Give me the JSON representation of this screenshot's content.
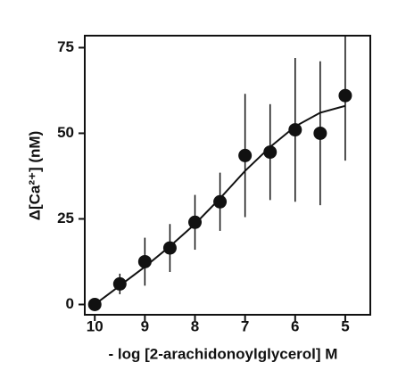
{
  "chart_data": {
    "type": "scatter",
    "xlabel": "- log [2-arachidonoylglycerol] M",
    "ylabel": "Δ[Ca²⁺] (nM)",
    "x": [
      10,
      9.5,
      9,
      8.5,
      8,
      7.5,
      7,
      6.5,
      6,
      5.5,
      5
    ],
    "values": [
      0,
      6,
      12.5,
      16.5,
      24,
      30,
      43.5,
      44.5,
      51,
      50,
      61
    ],
    "errors": [
      0,
      3,
      7,
      7,
      8,
      8.5,
      18,
      14,
      21,
      21,
      19
    ],
    "fit": {
      "x": [
        10,
        9.5,
        9,
        8.5,
        8,
        7.5,
        7,
        6.5,
        6,
        5.5,
        5
      ],
      "values": [
        0,
        5.5,
        11,
        17,
        23.5,
        31,
        39,
        46,
        52,
        56,
        58
      ]
    },
    "color": "#111111",
    "xlim": [
      10.2,
      4.5
    ],
    "xticks": [
      10,
      9,
      8,
      7,
      6,
      5
    ],
    "ylim": [
      -3,
      78.5
    ],
    "yticks": [
      0,
      25,
      50,
      75
    ]
  }
}
